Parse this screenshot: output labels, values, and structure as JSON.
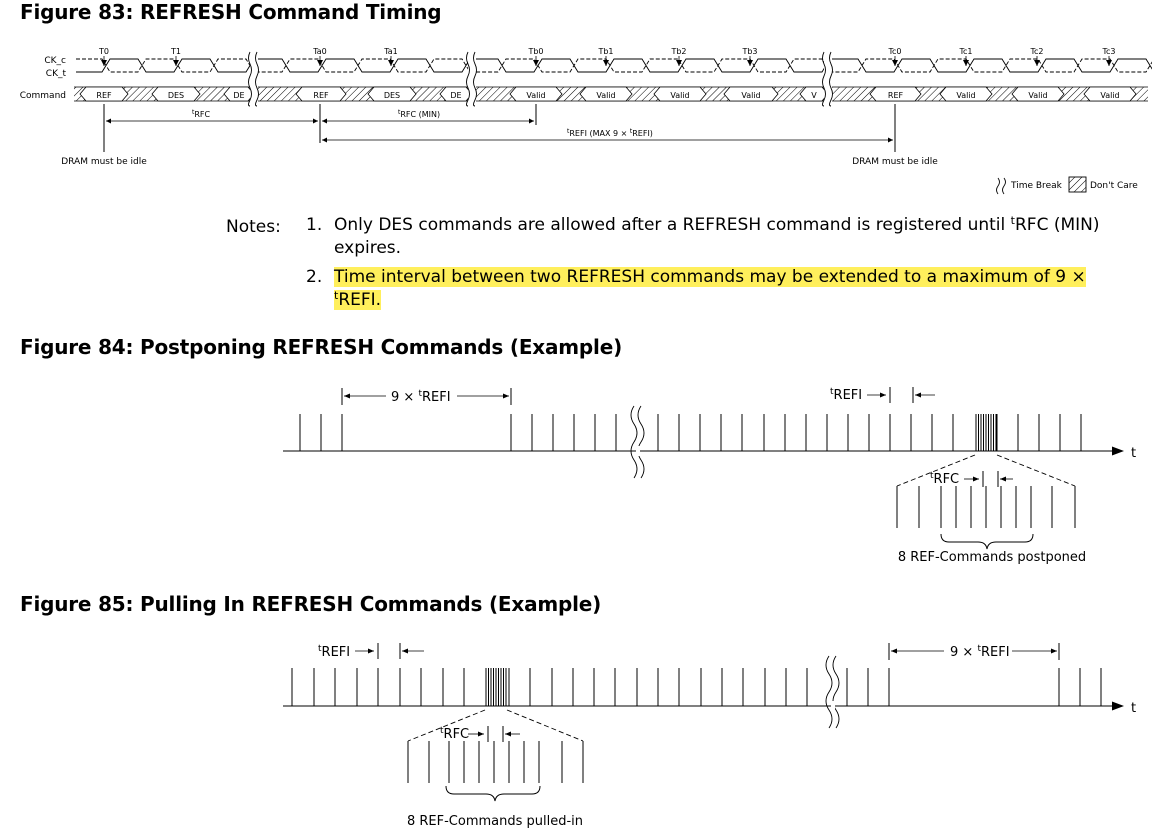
{
  "figures": {
    "f83": {
      "title": "Figure 83: REFRESH Command Timing"
    },
    "f84": {
      "title": "Figure 84: Postponing REFRESH Commands (Example)"
    },
    "f85": {
      "title": "Figure 85: Pulling In REFRESH Commands (Example)"
    }
  },
  "timing": {
    "signals": {
      "ck_c": "CK_c",
      "ck_t": "CK_t",
      "command": "Command"
    },
    "clocks": [
      "T0",
      "T1",
      "Ta0",
      "Ta1",
      "Tb0",
      "Tb1",
      "Tb2",
      "Tb3",
      "Tc0",
      "Tc1",
      "Tc2",
      "Tc3"
    ],
    "commands": [
      "REF",
      "DES",
      "DE",
      "REF",
      "DES",
      "DE",
      "Valid",
      "Valid",
      "Valid",
      "Valid",
      "V",
      "REF",
      "Valid",
      "Valid",
      "Valid"
    ],
    "intervals": {
      "trfc": "RFC",
      "trfc_min": "RFC (MIN)",
      "trefi_max": "REFI (MAX 9 × ",
      "trefi_max_tail": "REFI)",
      "t_prefix": "t"
    },
    "idle_left": "DRAM must be idle",
    "idle_right": "DRAM must be idle",
    "legend": {
      "time_break": "Time Break",
      "dont_care": "Don't Care"
    }
  },
  "notes": {
    "label": "Notes:",
    "n1_num": "1.",
    "n1_text_a": "Only DES commands are allowed after a REFRESH command is registered until ",
    "n1_text_b": "RFC (MIN) expires.",
    "n2_num": "2.",
    "n2_text_a": "Time interval between two REFRESH commands may be extended to a maximum of 9 × ",
    "n2_text_b": "REFI.",
    "t_prefix": "t"
  },
  "postpone": {
    "label_9trefi": "9 × ",
    "label_trefi": "REFI",
    "label_trfc": "RFC",
    "t_prefix": "t",
    "axis_label": "t",
    "caption": "8 REF-Commands postponed"
  },
  "pullin": {
    "label_9trefi": "9 × ",
    "label_trefi": "REFI",
    "label_trfc": "RFC",
    "t_prefix": "t",
    "axis_label": "t",
    "caption": "8 REF-Commands pulled-in"
  }
}
